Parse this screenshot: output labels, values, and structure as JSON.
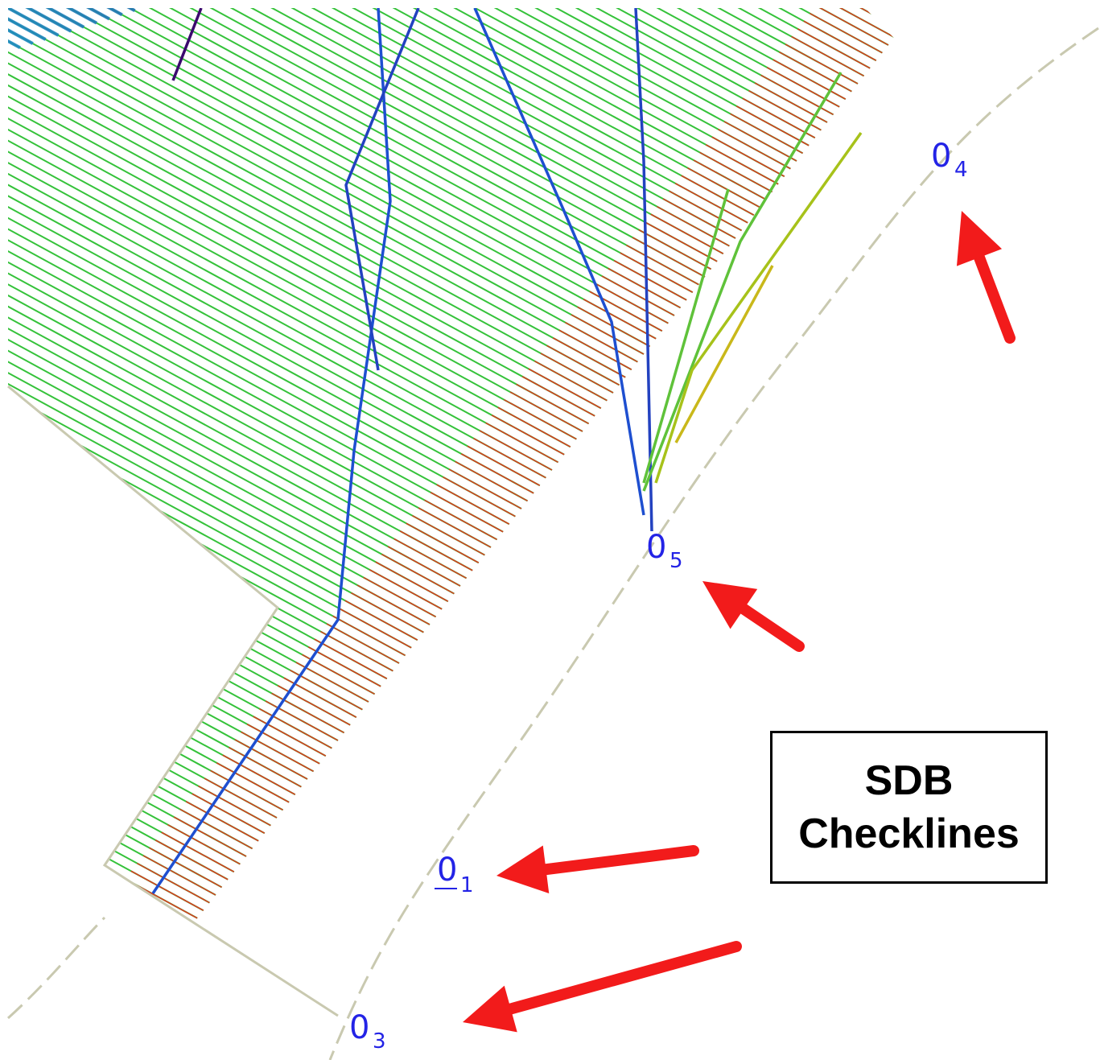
{
  "legend": {
    "line1": "SDB",
    "line2": "Checklines"
  },
  "checkpoints": [
    {
      "id": "o4",
      "base": "0",
      "sub": "4"
    },
    {
      "id": "o5",
      "base": "0",
      "sub": "5"
    },
    {
      "id": "o1",
      "base": "0",
      "sub": "1"
    },
    {
      "id": "o3",
      "base": "0",
      "sub": "3"
    }
  ],
  "colors": {
    "checkline_label": "#2323e6",
    "arrow": "#f21b1b",
    "boundary": "#c9c9b0",
    "depth_deep": "#3b0a6e",
    "depth_mid": "#1e6fd0",
    "depth_shallow": "#35c23a",
    "depth_shoal": "#d83a1f"
  },
  "icons": {
    "arrow": "arrow-icon"
  }
}
